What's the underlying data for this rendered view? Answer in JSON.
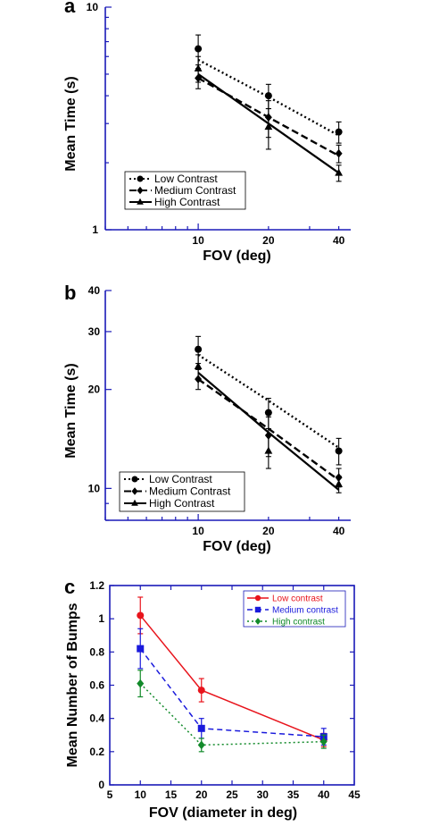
{
  "chart_data": [
    {
      "panel": "a",
      "type": "line",
      "scale": "log-log",
      "xlabel": "FOV (deg)",
      "ylabel": "Mean Time (s)",
      "x": [
        10,
        20,
        40
      ],
      "xticks": [
        "10",
        "20",
        "40"
      ],
      "yticks": [
        "1",
        "10"
      ],
      "ylim": [
        1,
        10
      ],
      "legend_position": "lower-left",
      "series": [
        {
          "name": "Low Contrast",
          "style": "dotted",
          "marker": "circle",
          "values": [
            6.5,
            4.0,
            2.75
          ],
          "errors": [
            1.0,
            0.5,
            0.3
          ],
          "color": "#000000",
          "fit": [
            5.8,
            3.95,
            2.65
          ]
        },
        {
          "name": "Medium Contrast",
          "style": "dashed",
          "marker": "diamond",
          "values": [
            4.8,
            3.2,
            2.2
          ],
          "errors": [
            0.5,
            0.6,
            0.2
          ],
          "color": "#000000",
          "fit": [
            4.8,
            3.2,
            2.15
          ]
        },
        {
          "name": "High Contrast",
          "style": "solid",
          "marker": "triangle",
          "values": [
            5.3,
            2.9,
            1.8
          ],
          "errors": [
            0.7,
            0.6,
            0.15
          ],
          "color": "#000000",
          "fit": [
            5.0,
            3.0,
            1.8
          ]
        }
      ]
    },
    {
      "panel": "b",
      "type": "line",
      "scale": "log-log",
      "xlabel": "FOV (deg)",
      "ylabel": "Mean Time (s)",
      "x": [
        10,
        20,
        40
      ],
      "xticks": [
        "10",
        "20",
        "40"
      ],
      "yticks": [
        "10",
        "20",
        "30",
        "40"
      ],
      "ylim": [
        8,
        40
      ],
      "legend_position": "lower-left",
      "series": [
        {
          "name": "Low Contrast",
          "style": "dotted",
          "marker": "circle",
          "values": [
            26.5,
            17.0,
            13.0
          ],
          "errors": [
            2.5,
            1.8,
            1.2
          ],
          "color": "#000000",
          "fit": [
            25.5,
            18.5,
            13.3
          ]
        },
        {
          "name": "Medium Contrast",
          "style": "dashed",
          "marker": "diamond",
          "values": [
            21.5,
            14.5,
            10.8
          ],
          "errors": [
            1.5,
            2.0,
            0.7
          ],
          "color": "#000000",
          "fit": [
            21.5,
            15.2,
            10.6
          ]
        },
        {
          "name": "High Contrast",
          "style": "solid",
          "marker": "triangle",
          "values": [
            23.5,
            13.0,
            10.3
          ],
          "errors": [
            2.0,
            1.5,
            0.6
          ],
          "color": "#000000",
          "fit": [
            22.5,
            14.8,
            9.9
          ]
        }
      ]
    },
    {
      "panel": "c",
      "type": "line",
      "scale": "linear",
      "xlabel": "FOV (diameter in deg)",
      "ylabel": "Mean Number of Bumps",
      "x": [
        10,
        20,
        40
      ],
      "xlim": [
        5,
        45
      ],
      "ylim": [
        0,
        1.2
      ],
      "xticks": [
        "5",
        "10",
        "15",
        "20",
        "25",
        "30",
        "35",
        "40",
        "45"
      ],
      "yticks": [
        "0",
        "0.2",
        "0.4",
        "0.6",
        "0.8",
        "1",
        "1.2"
      ],
      "legend_position": "top-right",
      "series": [
        {
          "name": "Low contrast",
          "style": "solid",
          "marker": "circle",
          "values": [
            1.02,
            0.57,
            0.27
          ],
          "errors": [
            0.11,
            0.07,
            0.04
          ],
          "color": "#e8141c"
        },
        {
          "name": "Medium contrast",
          "style": "dashed",
          "marker": "square",
          "values": [
            0.82,
            0.34,
            0.29
          ],
          "errors": [
            0.12,
            0.06,
            0.05
          ],
          "color": "#1a1adc"
        },
        {
          "name": "High contrast",
          "style": "dotted",
          "marker": "diamond",
          "values": [
            0.61,
            0.24,
            0.26
          ],
          "errors": [
            0.08,
            0.04,
            0.04
          ],
          "color": "#128a2a"
        }
      ]
    }
  ]
}
